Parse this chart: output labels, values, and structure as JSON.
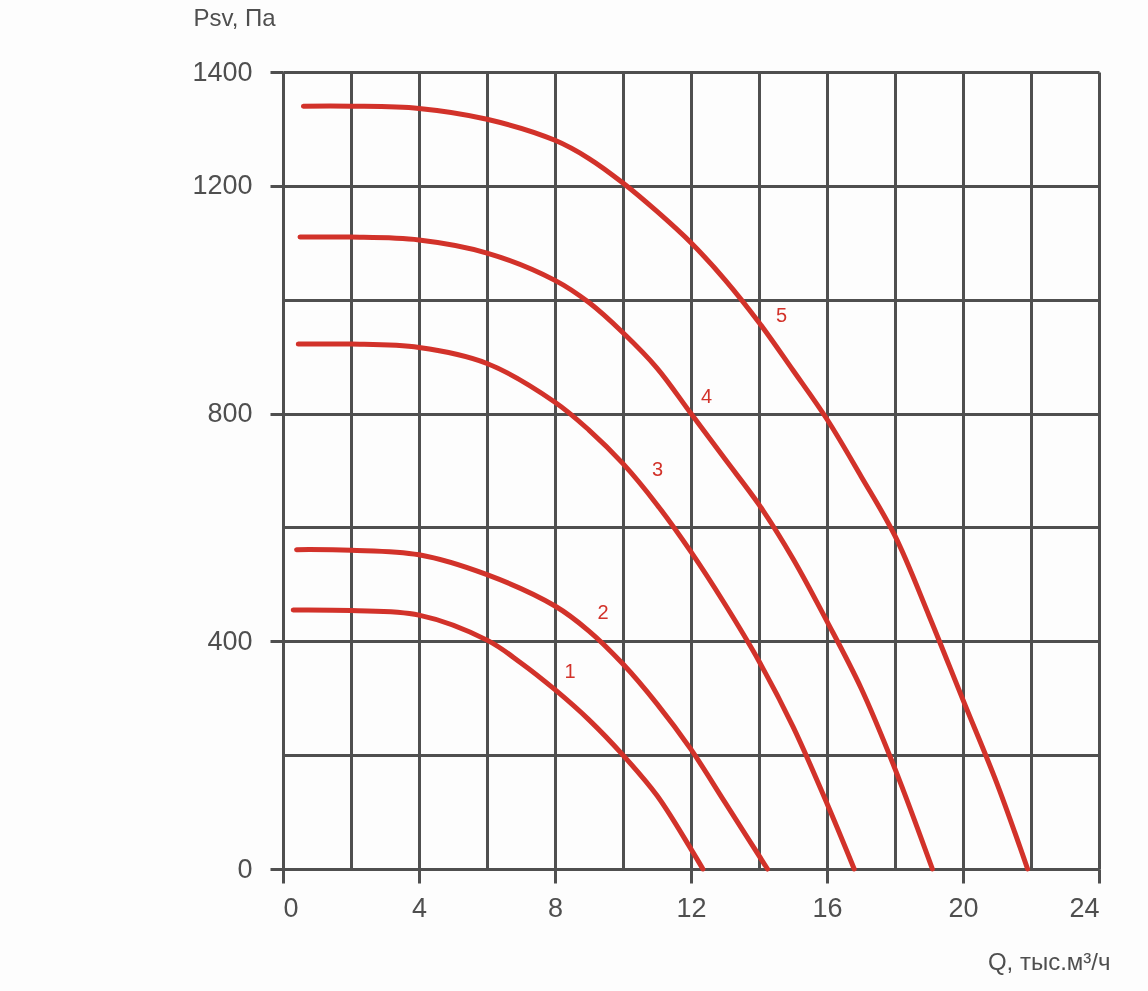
{
  "chart_data": {
    "type": "line",
    "xlabel": "Q, тыс.м³/ч",
    "ylabel": "Psv, Па",
    "xlim": [
      0,
      24
    ],
    "xticks": [
      0,
      {
        "value": 2,
        "label": null
      },
      4,
      {
        "value": 6,
        "label": null
      },
      8,
      {
        "value": 10,
        "label": null
      },
      12,
      {
        "value": 14,
        "label": null
      },
      16,
      {
        "value": 18,
        "label": null
      },
      20,
      {
        "value": 22,
        "label": null
      },
      24
    ],
    "ylim": [
      0,
      1400
    ],
    "yticks": [
      0,
      {
        "value": 200,
        "label": null
      },
      400,
      {
        "value": 600,
        "label": null
      },
      800,
      {
        "value": 1000,
        "label": null
      },
      1200,
      1400
    ],
    "grid": true,
    "series": [
      {
        "name": "1",
        "color": "#d2322a",
        "x": [
          0.3,
          2,
          4,
          6,
          7,
          8,
          9,
          10,
          11,
          12,
          12.35
        ],
        "values": [
          455,
          454,
          446,
          402,
          362,
          315,
          262,
          200,
          129,
          35,
          0
        ]
      },
      {
        "name": "2",
        "color": "#d2322a",
        "x": [
          0.4,
          2,
          4,
          6,
          8,
          9,
          10,
          11,
          12,
          13,
          14.25
        ],
        "values": [
          561,
          560,
          552,
          517,
          462,
          418,
          360,
          290,
          210,
          117,
          0
        ]
      },
      {
        "name": "3",
        "color": "#d2322a",
        "x": [
          0.45,
          2,
          4,
          6,
          8,
          9,
          10,
          11,
          12,
          13,
          14,
          15,
          16,
          16.8
        ],
        "values": [
          922,
          922,
          916,
          888,
          820,
          771,
          712,
          640,
          557,
          465,
          365,
          250,
          115,
          0
        ]
      },
      {
        "name": "4",
        "color": "#d2322a",
        "x": [
          0.5,
          2,
          4,
          6,
          8,
          9,
          10,
          11,
          12,
          13,
          14,
          15,
          16,
          17,
          18,
          19.1
        ],
        "values": [
          1110,
          1110,
          1105,
          1082,
          1034,
          995,
          942,
          880,
          800,
          720,
          640,
          545,
          435,
          318,
          176,
          0
        ]
      },
      {
        "name": "5",
        "color": "#d2322a",
        "x": [
          0.6,
          2,
          4,
          6,
          8,
          9,
          10,
          11,
          12,
          13,
          14,
          15,
          16,
          17,
          18,
          19,
          20,
          21,
          21.9
        ],
        "values": [
          1340,
          1340,
          1336,
          1317,
          1280,
          1248,
          1205,
          1155,
          1100,
          1035,
          960,
          876,
          790,
          690,
          585,
          445,
          297,
          150,
          0
        ]
      }
    ]
  }
}
